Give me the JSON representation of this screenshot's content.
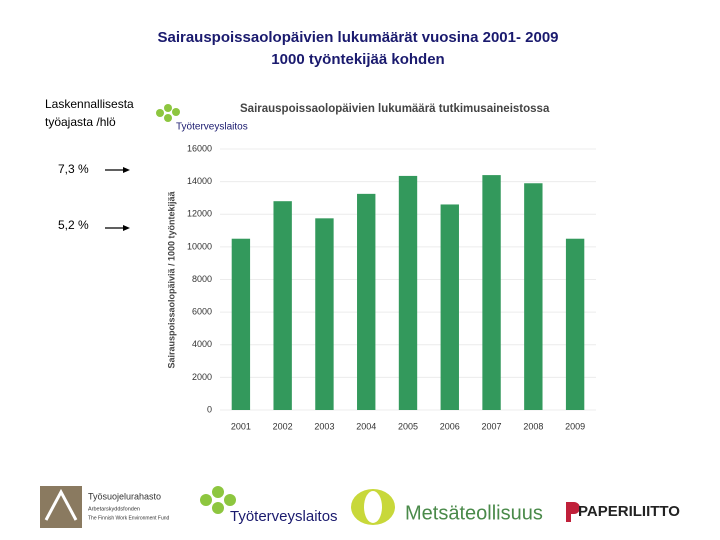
{
  "slide": {
    "title_lines": [
      "Sairauspoissaolopäivien lukumäärät vuosina 2001- 2009",
      "1000 työntekijää kohden"
    ],
    "side_note": {
      "lines": [
        "Laskennallisesta",
        "työajasta /hlö"
      ],
      "markers": [
        "7,3 %",
        "5,2 %"
      ]
    },
    "chart_logo": "Työterveyslaitos",
    "footer_logos": {
      "fund": [
        "Työsuojelurahasto",
        "Arbetarskyddsfonden",
        "The Finnish Work Environment Fund"
      ],
      "institute": "Työterveyslaitos",
      "industry": "Metsäteollisuus",
      "union": "PAPERILIITTO"
    }
  },
  "chart_data": {
    "type": "bar",
    "title": "Sairauspoissaolopäivien lukumäärä tutkimusaineistossa",
    "y_label": "Sairauspoissaolopäiviä / 1000 työntekijää",
    "categories": [
      "2001",
      "2002",
      "2003",
      "2004",
      "2005",
      "2006",
      "2007",
      "2008",
      "2009"
    ],
    "values": [
      10500,
      12800,
      11750,
      13250,
      14350,
      12600,
      14400,
      13900,
      10500
    ],
    "color": "#33995c",
    "ylim": [
      0,
      16000
    ],
    "yticks": [
      0,
      2000,
      4000,
      6000,
      8000,
      10000,
      12000,
      14000,
      16000
    ],
    "grid": true
  }
}
